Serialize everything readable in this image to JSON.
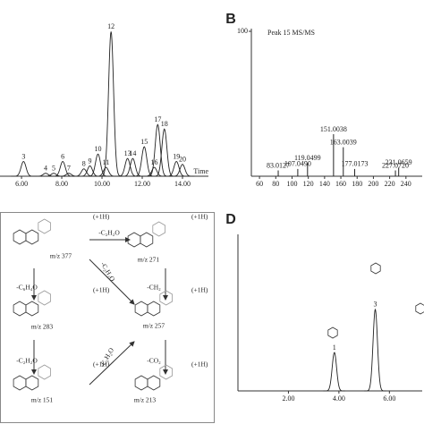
{
  "panel_labels": [
    "B",
    "D"
  ],
  "chart_data": [
    {
      "type": "line",
      "x": [
        6.1,
        7.2,
        7.6,
        8.05,
        8.35,
        9.1,
        9.4,
        9.8,
        10.2,
        10.45,
        11.27,
        11.53,
        12.1,
        12.6,
        12.77,
        13.1,
        13.7,
        14.0
      ],
      "values": [
        10,
        2,
        2,
        10,
        2,
        5,
        7,
        15,
        6,
        98,
        12,
        12,
        20,
        6,
        35,
        32,
        10,
        8
      ],
      "peak_labels": [
        "3",
        "4",
        "5",
        "6",
        "7",
        "8",
        "9",
        "10",
        "11",
        "12",
        "13",
        "14",
        "15",
        "16",
        "17",
        "18",
        "19",
        "20"
      ],
      "xlim": [
        4.93,
        15.29
      ],
      "ylim": [
        0,
        100
      ],
      "xticks": [
        {
          "value": 6,
          "label": "6.00"
        },
        {
          "value": 8,
          "label": "8.00"
        },
        {
          "value": 10,
          "label": "10.00"
        },
        {
          "value": 12,
          "label": "12.00"
        },
        {
          "value": 14,
          "label": "14.00"
        }
      ],
      "x_label": "Time",
      "color": "#222222",
      "label_color": "#c0292b",
      "y_axis": false
    },
    {
      "type": "bar",
      "title": "Peak 15 MS/MS",
      "x": [
        83.0127,
        107.049,
        119.0499,
        151.0038,
        163.0039,
        177.0173,
        227.072,
        231.0659
      ],
      "values": [
        4,
        5,
        9,
        29,
        20,
        5,
        4,
        6
      ],
      "peak_labels": [
        "83.0127",
        "107.0490",
        "119.0499",
        "151.0038",
        "163.0039",
        "177.0173",
        "227.0720",
        "231.0659"
      ],
      "xlim": [
        50,
        260
      ],
      "ylim": [
        0,
        100
      ],
      "xticks": [
        60,
        80,
        100,
        120,
        140,
        160,
        180,
        200,
        220,
        240
      ],
      "yticks": [
        100
      ],
      "color": "#222222",
      "label_color": "#444444",
      "y_axis": true
    },
    {
      "type": "line",
      "x": [
        3.82,
        5.44
      ],
      "values": [
        25,
        53
      ],
      "peak_labels": [
        "1",
        "3"
      ],
      "xlim": [
        0,
        7.3
      ],
      "ylim": [
        0,
        100
      ],
      "xticks": [
        {
          "value": 2,
          "label": "2.00"
        },
        {
          "value": 4,
          "label": "4.00"
        },
        {
          "value": 6,
          "label": "6.00"
        }
      ],
      "color": "#222222",
      "label_color": "#c0292b",
      "y_axis": true
    }
  ],
  "diagram": {
    "ions": [
      "m/z 377",
      "m/z 271",
      "m/z 283",
      "m/z 257",
      "m/z 151",
      "m/z 213"
    ],
    "losses": [
      "-C₂H₂O",
      "-C₆H₄O",
      "-C₂H₂O",
      "-CH₂",
      "-C₂H₂O",
      "-C₂H₂O",
      "-CO₂"
    ],
    "adducts": [
      "(+1H)",
      "(+1H)",
      "(+1H)",
      "(+1H)",
      "(+1H)",
      "(+1H)"
    ]
  }
}
